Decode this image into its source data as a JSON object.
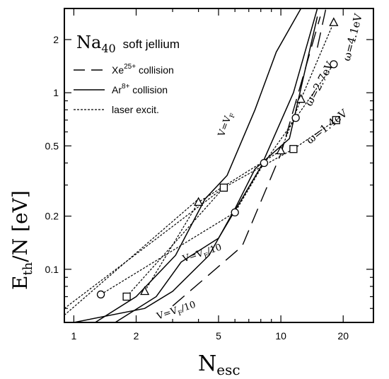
{
  "chart_data": {
    "type": "line",
    "xscale": "log",
    "yscale": "log",
    "xlim": [
      0.9,
      28
    ],
    "ylim": [
      0.05,
      3.0
    ],
    "xlabel": "N",
    "xlabel_sub": "esc",
    "ylabel_main": "E",
    "ylabel_sub": "th",
    "ylabel_rest": "/N  [eV]",
    "x_ticks": [
      1,
      2,
      5,
      10,
      20
    ],
    "x_tick_labels": [
      "1",
      "2",
      "5",
      "10",
      "20"
    ],
    "y_ticks": [
      0.1,
      0.2,
      0.5,
      1,
      2
    ],
    "y_tick_labels": [
      "0.1",
      "0.2",
      "0.5",
      "1",
      "2"
    ],
    "title_main": "Na",
    "title_sub": "40",
    "title_rest": "soft jellium",
    "legend": [
      {
        "prefix": "Xe",
        "sup": "25+",
        "suffix": " collision",
        "style": "dashed"
      },
      {
        "prefix": "Ar",
        "sup": "8+",
        "suffix": " collision",
        "style": "solid"
      },
      {
        "prefix": "laser excit.",
        "sup": "",
        "suffix": "",
        "style": "dotted"
      }
    ],
    "series": [
      {
        "name": "Xe25+ collision",
        "group": "xe",
        "style": "dashed",
        "x": [
          3.0,
          6.5,
          10.0,
          15.5
        ],
        "y": [
          0.062,
          0.135,
          0.45,
          2.7
        ]
      },
      {
        "name": "Xe25+ collision",
        "group": "xe",
        "style": "dashed",
        "x": [
          15.0,
          16.5,
          18.5
        ],
        "y": [
          1.8,
          3.0,
          4.0
        ]
      },
      {
        "name": "Ar8+ collision",
        "group": "ar",
        "style": "solid",
        "x": [
          1.1,
          2.0,
          3.1,
          4.3,
          5.5,
          7.5,
          9.5,
          12.5
        ],
        "y": [
          0.045,
          0.07,
          0.12,
          0.25,
          0.34,
          0.8,
          1.7,
          3.0
        ]
      },
      {
        "name": "Ar8+ collision",
        "group": "ar",
        "style": "solid",
        "x": [
          1.5,
          2.5,
          3.3,
          5.0,
          8.0,
          11.5,
          15.0
        ],
        "y": [
          0.048,
          0.07,
          0.11,
          0.15,
          0.38,
          1.0,
          3.0
        ]
      },
      {
        "name": "Ar8+ collision",
        "group": "ar",
        "style": "solid",
        "x": [
          1.0,
          2.2,
          3.0,
          4.5,
          6.0,
          7.5,
          11.0,
          15.0
        ],
        "y": [
          0.05,
          0.06,
          0.075,
          0.12,
          0.22,
          0.37,
          0.55,
          2.7
        ]
      },
      {
        "name": "ω=1.4eV",
        "group": "laser",
        "style": "dotted",
        "marker": "square",
        "x": [
          1.8,
          5.3,
          11.5,
          18.5
        ],
        "y": [
          0.07,
          0.29,
          0.48,
          0.7
        ]
      },
      {
        "name": "ω=2.7eV",
        "group": "laser",
        "style": "dotted",
        "marker": "circle",
        "x": [
          1.35,
          6.0,
          8.3,
          11.8,
          18.0
        ],
        "y": [
          0.072,
          0.21,
          0.4,
          0.72,
          1.45
        ]
      },
      {
        "name": "ω=4.1eV",
        "group": "laser",
        "style": "dotted",
        "marker": "triangle",
        "x": [
          2.2,
          4.0,
          10.0,
          12.5,
          18.0
        ],
        "y": [
          0.075,
          0.24,
          0.47,
          0.92,
          2.5
        ]
      },
      {
        "name": "",
        "group": "laser-thin",
        "style": "dotted",
        "x": [
          0.9,
          4.0
        ],
        "y": [
          0.055,
          0.25
        ]
      },
      {
        "name": "",
        "group": "laser-thin",
        "style": "dotted",
        "x": [
          0.9,
          5.3
        ],
        "y": [
          0.06,
          0.29
        ]
      }
    ],
    "annotations": [
      {
        "text": "ω=1.4eV",
        "x": 13.8,
        "y": 0.51,
        "angle": -38,
        "size": 15
      },
      {
        "text": "ω=2.7eV",
        "x": 14.0,
        "y": 0.83,
        "angle": -62,
        "size": 15
      },
      {
        "text": "ω=4.1eV",
        "x": 21.5,
        "y": 1.5,
        "angle": -75,
        "size": 15
      },
      {
        "text": "V=V",
        "sub": "F",
        "x": 5.3,
        "y": 0.56,
        "angle": -70,
        "size": 13
      },
      {
        "text": "V=V",
        "sub": "F",
        "suffix": "/10",
        "x": 3.4,
        "y": 0.11,
        "angle": -18,
        "size": 13
      },
      {
        "text": "V=V",
        "sub": "F",
        "suffix": "/10",
        "x": 2.55,
        "y": 0.052,
        "angle": -18,
        "size": 13
      }
    ],
    "grid": false
  }
}
